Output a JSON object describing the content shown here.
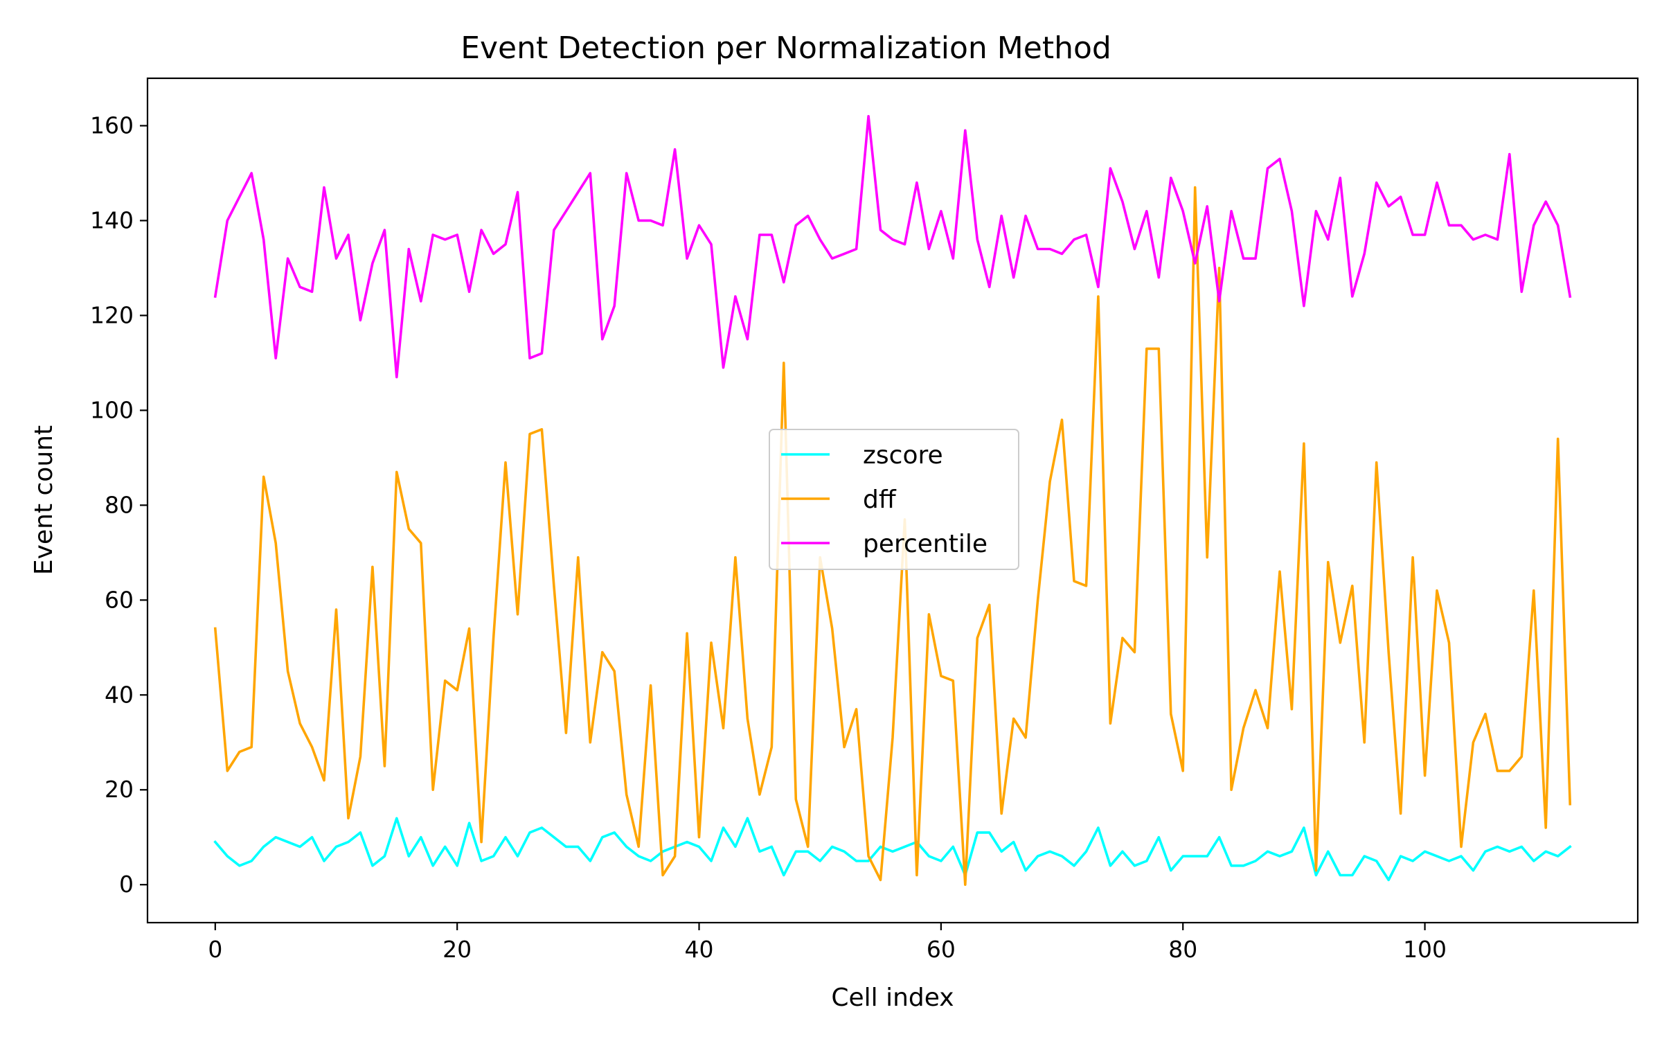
{
  "chart_data": {
    "type": "line",
    "title": "Event Detection per Normalization Method",
    "xlabel": "Cell index",
    "ylabel": "Event count",
    "xlim": [
      -5.6,
      117.6
    ],
    "ylim": [
      -8,
      170
    ],
    "xticks": [
      0,
      20,
      40,
      60,
      80,
      100
    ],
    "yticks": [
      0,
      20,
      40,
      60,
      80,
      100,
      120,
      140,
      160
    ],
    "grid": false,
    "legend_position": "center",
    "x": [
      0,
      1,
      2,
      3,
      4,
      5,
      6,
      7,
      8,
      9,
      10,
      11,
      12,
      13,
      14,
      15,
      16,
      17,
      18,
      19,
      20,
      21,
      22,
      23,
      24,
      25,
      26,
      27,
      28,
      29,
      30,
      31,
      32,
      33,
      34,
      35,
      36,
      37,
      38,
      39,
      40,
      41,
      42,
      43,
      44,
      45,
      46,
      47,
      48,
      49,
      50,
      51,
      52,
      53,
      54,
      55,
      56,
      57,
      58,
      59,
      60,
      61,
      62,
      63,
      64,
      65,
      66,
      67,
      68,
      69,
      70,
      71,
      72,
      73,
      74,
      75,
      76,
      77,
      78,
      79,
      80,
      81,
      82,
      83,
      84,
      85,
      86,
      87,
      88,
      89,
      90,
      91,
      92,
      93,
      94,
      95,
      96,
      97,
      98,
      99,
      100,
      101,
      102,
      103,
      104,
      105,
      106,
      107,
      108,
      109,
      110,
      111,
      112
    ],
    "series": [
      {
        "name": "zscore",
        "color": "#00ffff",
        "values": [
          9,
          6,
          4,
          5,
          8,
          10,
          9,
          8,
          10,
          5,
          8,
          9,
          11,
          4,
          6,
          14,
          6,
          10,
          4,
          8,
          4,
          13,
          5,
          6,
          10,
          6,
          11,
          12,
          10,
          8,
          8,
          5,
          10,
          11,
          8,
          6,
          5,
          7,
          8,
          9,
          8,
          5,
          12,
          8,
          14,
          7,
          8,
          2,
          7,
          7,
          5,
          8,
          7,
          5,
          5,
          8,
          7,
          8,
          9,
          6,
          5,
          8,
          2,
          11,
          11,
          7,
          9,
          3,
          6,
          7,
          6,
          4,
          7,
          12,
          4,
          7,
          4,
          5,
          10,
          3,
          6,
          6,
          6,
          10,
          4,
          4,
          5,
          7,
          6,
          7,
          12,
          2,
          7,
          2,
          2,
          6,
          5,
          1,
          6,
          5,
          7,
          6,
          5,
          6,
          3,
          7,
          8,
          7,
          8,
          5,
          7,
          6,
          8
        ]
      },
      {
        "name": "dff",
        "color": "#ffa500",
        "values": [
          54,
          24,
          28,
          29,
          86,
          72,
          45,
          34,
          29,
          22,
          58,
          14,
          27,
          67,
          25,
          87,
          75,
          72,
          20,
          43,
          41,
          54,
          9,
          52,
          89,
          57,
          95,
          96,
          63,
          32,
          69,
          30,
          49,
          45,
          19,
          8,
          42,
          2,
          6,
          53,
          10,
          51,
          33,
          69,
          35,
          19,
          29,
          110,
          18,
          8,
          69,
          54,
          29,
          37,
          6,
          1,
          31,
          77,
          2,
          57,
          44,
          43,
          0,
          52,
          59,
          15,
          35,
          31,
          60,
          85,
          98,
          64,
          63,
          124,
          34,
          52,
          49,
          113,
          113,
          36,
          24,
          147,
          69,
          130,
          20,
          33,
          41,
          33,
          66,
          37,
          93,
          3,
          68,
          51,
          63,
          30,
          89,
          49,
          15,
          69,
          23,
          62,
          51,
          8,
          30,
          36,
          24,
          24,
          27,
          62,
          12,
          94,
          17
        ]
      },
      {
        "name": "percentile",
        "color": "#ff00ff",
        "values": [
          124,
          140,
          145,
          150,
          136,
          111,
          132,
          126,
          125,
          147,
          132,
          137,
          119,
          131,
          138,
          107,
          134,
          123,
          137,
          136,
          137,
          125,
          138,
          133,
          135,
          146,
          111,
          112,
          138,
          142,
          146,
          150,
          115,
          122,
          150,
          140,
          140,
          139,
          155,
          132,
          139,
          135,
          109,
          124,
          115,
          137,
          137,
          127,
          139,
          141,
          136,
          132,
          133,
          134,
          162,
          138,
          136,
          135,
          148,
          134,
          142,
          132,
          159,
          136,
          126,
          141,
          128,
          141,
          134,
          134,
          133,
          136,
          137,
          126,
          151,
          144,
          134,
          142,
          128,
          149,
          142,
          131,
          143,
          123,
          142,
          132,
          132,
          151,
          153,
          142,
          122,
          142,
          136,
          149,
          124,
          133,
          148,
          143,
          145,
          137,
          137,
          148,
          139,
          139,
          136,
          137,
          136,
          154,
          125,
          139,
          144,
          139,
          124
        ]
      }
    ]
  }
}
